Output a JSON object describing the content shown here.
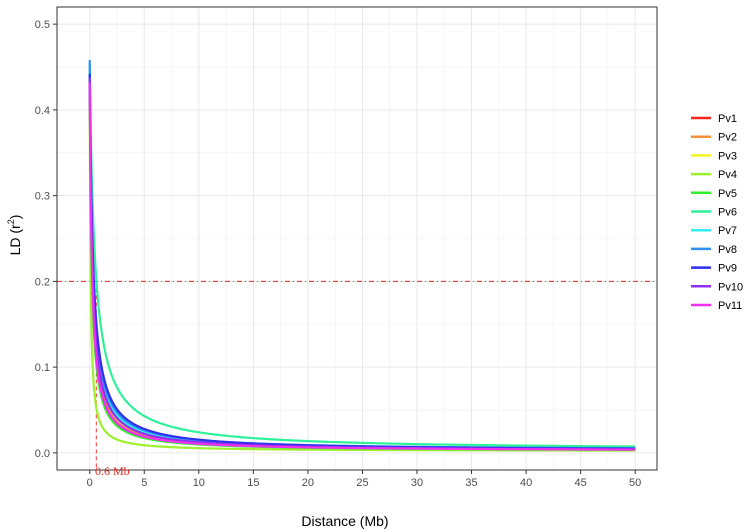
{
  "chart_data": {
    "type": "line",
    "xlabel": "Distance (Mb)",
    "ylabel_main": "LD (r",
    "ylabel_sup": "2",
    "ylabel_close": ")",
    "xlim": [
      -3,
      52
    ],
    "ylim": [
      -0.02,
      0.52
    ],
    "xticks": [
      0,
      5,
      10,
      15,
      20,
      25,
      30,
      35,
      40,
      45,
      50
    ],
    "yticks": [
      0.0,
      0.1,
      0.2,
      0.3,
      0.4,
      0.5
    ],
    "ytick_labels": [
      "0.0",
      "0.1",
      "0.2",
      "0.3",
      "0.4",
      "0.5"
    ],
    "grid": true,
    "legend_position": "right",
    "reference_lines": {
      "horizontal_y": 0.2,
      "vertical_x": 0.6,
      "color": "#e8241e",
      "annotation": "0.6 Mb"
    },
    "series": [
      {
        "name": "Pv1",
        "color": "#f8261c",
        "r0": 0.43,
        "k": 5.0,
        "floor": 0.002
      },
      {
        "name": "Pv2",
        "color": "#f6903a",
        "r0": 0.44,
        "k": 4.7,
        "floor": 0.002
      },
      {
        "name": "Pv3",
        "color": "#f4f423",
        "r0": 0.445,
        "k": 3.6,
        "floor": 0.002
      },
      {
        "name": "Pv4",
        "color": "#9cf02c",
        "r0": 0.42,
        "k": 12.0,
        "floor": 0.002
      },
      {
        "name": "Pv5",
        "color": "#2ef02c",
        "r0": 0.435,
        "k": 5.5,
        "floor": 0.002
      },
      {
        "name": "Pv6",
        "color": "#2ef29a",
        "r0": 0.44,
        "k": 2.0,
        "floor": 0.003
      },
      {
        "name": "Pv7",
        "color": "#2ff0f0",
        "r0": 0.45,
        "k": 4.0,
        "floor": 0.003
      },
      {
        "name": "Pv8",
        "color": "#2e8ff0",
        "r0": 0.455,
        "k": 3.7,
        "floor": 0.003
      },
      {
        "name": "Pv9",
        "color": "#2f2ff0",
        "r0": 0.44,
        "k": 3.2,
        "floor": 0.002
      },
      {
        "name": "Pv10",
        "color": "#902ff0",
        "r0": 0.435,
        "k": 4.1,
        "floor": 0.002
      },
      {
        "name": "Pv11",
        "color": "#f02ff0",
        "r0": 0.43,
        "k": 4.9,
        "floor": 0.002
      }
    ]
  }
}
